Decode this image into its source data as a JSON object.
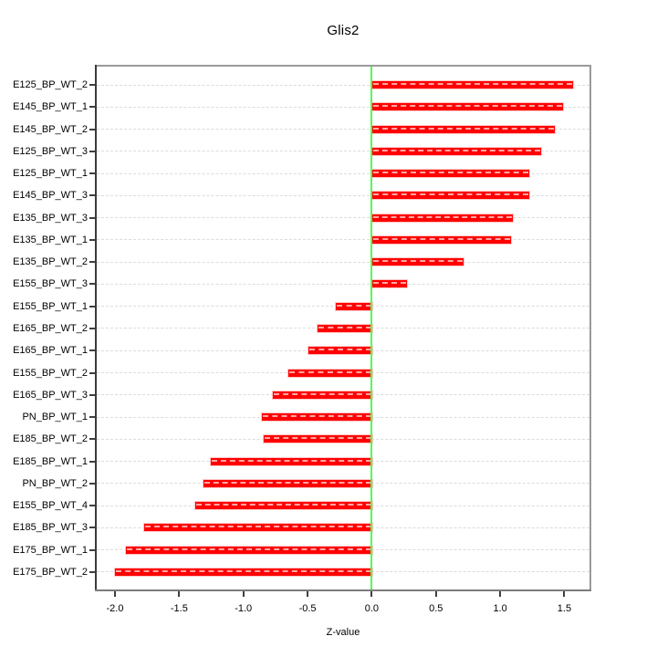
{
  "chart_data": {
    "type": "bar",
    "orientation": "horizontal",
    "title": "Glis2",
    "xlabel": "Z-value",
    "ylabel": "",
    "legend": "none",
    "grid": "horizontal-dashed-per-bar",
    "zero_line_x": 0.0,
    "xlim": [
      -2.16,
      1.71
    ],
    "x_ticks": [
      -2.0,
      -1.5,
      -1.0,
      -0.5,
      0.0,
      0.5,
      1.0,
      1.5
    ],
    "x_tick_labels": [
      "-2.0",
      "-1.5",
      "-1.0",
      "-0.5",
      "0.0",
      "0.5",
      "1.0",
      "1.5"
    ],
    "categories": [
      "E125_BP_WT_2",
      "E145_BP_WT_1",
      "E145_BP_WT_2",
      "E125_BP_WT_3",
      "E125_BP_WT_1",
      "E145_BP_WT_3",
      "E135_BP_WT_3",
      "E135_BP_WT_1",
      "E135_BP_WT_2",
      "E155_BP_WT_3",
      "E155_BP_WT_1",
      "E165_BP_WT_2",
      "E165_BP_WT_1",
      "E155_BP_WT_2",
      "E165_BP_WT_3",
      "PN_BP_WT_1",
      "E185_BP_WT_2",
      "E185_BP_WT_1",
      "PN_BP_WT_2",
      "E155_BP_WT_4",
      "E185_BP_WT_3",
      "E175_BP_WT_1",
      "E175_BP_WT_2"
    ],
    "values": [
      1.56,
      1.48,
      1.42,
      1.31,
      1.22,
      1.22,
      1.09,
      1.08,
      0.71,
      0.27,
      -0.29,
      -0.43,
      -0.5,
      -0.66,
      -0.78,
      -0.86,
      -0.85,
      -1.26,
      -1.32,
      -1.38,
      -1.78,
      -1.92,
      -2.01
    ],
    "colors": {
      "bar": "#FF0000",
      "bar_edge": "#FFC4C4",
      "zero_line": "#55F955",
      "grid": "#DCDCDC",
      "plot_border": "#9A9A9A",
      "y_axis_line": "#3B3B3B",
      "x_axis_line": "#7D7D7D",
      "tick": "#3F3F3F",
      "text": "#000000",
      "background": "#FFFFFF"
    }
  }
}
